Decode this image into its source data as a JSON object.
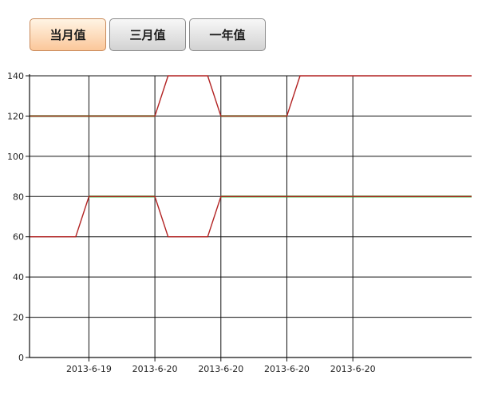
{
  "tabs": [
    {
      "label": "当月值",
      "active": true
    },
    {
      "label": "三月值",
      "active": false
    },
    {
      "label": "一年值",
      "active": false
    }
  ],
  "chart_data": {
    "type": "line",
    "title": "",
    "xlabel": "",
    "ylabel": "",
    "ylim": [
      0,
      140
    ],
    "yticks": [
      0,
      20,
      40,
      60,
      80,
      100,
      120,
      140
    ],
    "xlim": [
      -0.9,
      5.8
    ],
    "xticks": [
      {
        "x": 0,
        "label": "2013-6-19"
      },
      {
        "x": 1,
        "label": "2013-6-20"
      },
      {
        "x": 2,
        "label": "2013-6-20"
      },
      {
        "x": 3,
        "label": "2013-6-20"
      },
      {
        "x": 4,
        "label": "2013-6-20"
      }
    ],
    "grid": true,
    "legend": "none",
    "series": [
      {
        "color": "#22a022",
        "segments": [
          {
            "x": [
              -0.9,
              1
            ],
            "y": [
              120,
              120
            ]
          },
          {
            "x": [
              2,
              3
            ],
            "y": [
              120,
              120
            ]
          },
          {
            "x": [
              0,
              1
            ],
            "y": [
              80,
              80
            ]
          },
          {
            "x": [
              2,
              5.8
            ],
            "y": [
              80,
              80
            ]
          }
        ]
      },
      {
        "color": "#b22222",
        "x": [
          -0.9,
          -0.2,
          0,
          1,
          1.2,
          1.8,
          2,
          3,
          3.2,
          5.8
        ],
        "y": [
          120,
          120,
          120,
          120,
          140,
          140,
          120,
          120,
          140,
          140
        ]
      },
      {
        "color": "#b22222",
        "x": [
          -0.9,
          -0.2,
          0,
          1,
          1.2,
          1.8,
          2,
          5.8
        ],
        "y": [
          60,
          60,
          80,
          80,
          60,
          60,
          80,
          80
        ]
      }
    ]
  }
}
